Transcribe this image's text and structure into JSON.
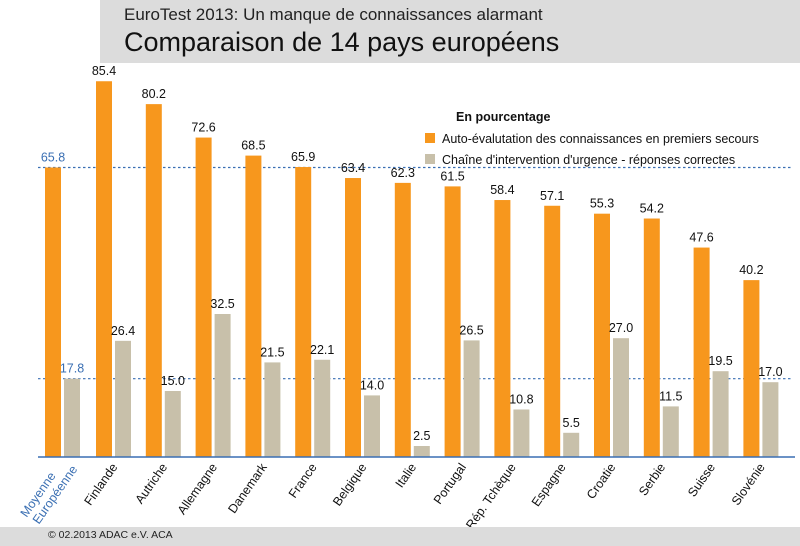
{
  "header": {
    "supertitle": "EuroTest 2013: Un manque de connaissances alarmant",
    "title": "Comparaison de 14 pays européens"
  },
  "footer": {
    "copyright": "© 02.2013 ADAC e.V. ACA"
  },
  "colors": {
    "series1": "#f7971d",
    "series2": "#c8c0aa",
    "average": "#3a6fb3",
    "panel": "#dcdcdc"
  },
  "chart_data": {
    "type": "bar",
    "legend_title": "En pourcentage",
    "legend_position": "top-right",
    "average_category": [
      "Moyenne",
      "Européenne"
    ],
    "categories": [
      "Finlande",
      "Autriche",
      "Allemagne",
      "Danemark",
      "France",
      "Belgique",
      "Italie",
      "Portugal",
      "Rép. Tchèque",
      "Espagne",
      "Croatie",
      "Serbie",
      "Suisse",
      "Slovénie"
    ],
    "series": [
      {
        "name": "Auto-évalutation des connaissances en premiers secours",
        "average": 65.8,
        "values": [
          85.4,
          80.2,
          72.6,
          68.5,
          65.9,
          63.4,
          62.3,
          61.5,
          58.4,
          57.1,
          55.3,
          54.2,
          47.6,
          40.2
        ]
      },
      {
        "name": "Chaîne d'intervention d'urgence - réponses correctes",
        "average": 17.8,
        "values": [
          26.4,
          15.0,
          32.5,
          21.5,
          22.1,
          14.0,
          2.5,
          26.5,
          10.8,
          5.5,
          27.0,
          11.5,
          19.5,
          17.0
        ]
      }
    ],
    "ylim": [
      0,
      100
    ],
    "reference_lines": [
      65.8,
      17.8
    ],
    "grid": false
  }
}
